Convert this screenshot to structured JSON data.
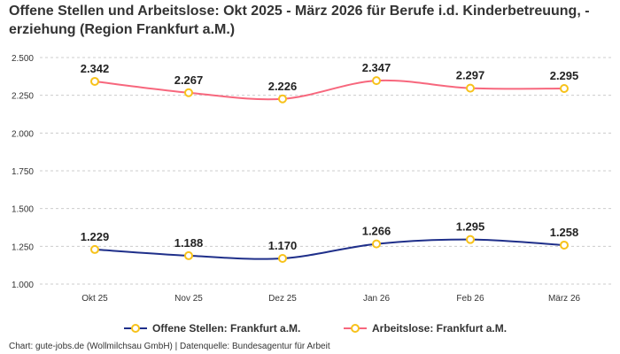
{
  "chart_data": {
    "type": "line",
    "title": "Offene Stellen und Arbeitslose: Okt 2025 - März 2026 für Berufe i.d. Kinderbetreuung, -erziehung (Region Frankfurt a.M.)",
    "categories": [
      "Okt 25",
      "Nov 25",
      "Dez 25",
      "Jan 26",
      "Feb 26",
      "März 26"
    ],
    "ylim": [
      1000,
      2500
    ],
    "yticks": [
      1000,
      1250,
      1500,
      1750,
      2000,
      2250,
      2500
    ],
    "ytick_labels": [
      "1.000",
      "1.250",
      "1.500",
      "1.750",
      "2.000",
      "2.250",
      "2.500"
    ],
    "grid": true,
    "legend_position": "bottom",
    "series": [
      {
        "name": "Offene Stellen: Frankfurt a.M.",
        "color": "#1f2f8a",
        "values": [
          1229,
          1188,
          1170,
          1266,
          1295,
          1258
        ],
        "labels": [
          "1.229",
          "1.188",
          "1.170",
          "1.266",
          "1.295",
          "1.258"
        ]
      },
      {
        "name": "Arbeitslose: Frankfurt a.M.",
        "color": "#f7677d",
        "values": [
          2342,
          2267,
          2226,
          2347,
          2297,
          2295
        ],
        "labels": [
          "2.342",
          "2.267",
          "2.226",
          "2.347",
          "2.297",
          "2.295"
        ]
      }
    ],
    "marker_color": "#f7c21b"
  },
  "credit": "Chart: gute-jobs.de (Wollmilchsau GmbH) | Datenquelle: Bundesagentur für Arbeit"
}
